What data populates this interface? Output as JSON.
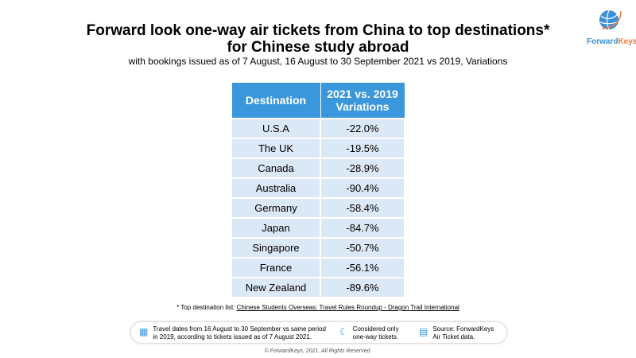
{
  "title_line1": "Forward look one-way air tickets from China to top destinations*",
  "title_line2": "for Chinese study abroad",
  "subtitle": "with bookings issued as of 7 August, 16 August to 30 September 2021 vs 2019, Variations",
  "logo": "ForwardKeys",
  "table": {
    "headers": [
      "Destination",
      "2021 vs. 2019 Variations"
    ],
    "rows": [
      [
        "U.S.A",
        "-22.0%"
      ],
      [
        "The UK",
        "-19.5%"
      ],
      [
        "Canada",
        "-28.9%"
      ],
      [
        "Australia",
        "-90.4%"
      ],
      [
        "Germany",
        "-58.4%"
      ],
      [
        "Japan",
        "-84.7%"
      ],
      [
        "Singapore",
        "-50.7%"
      ],
      [
        "France",
        "-56.1%"
      ],
      [
        "New Zealand",
        "-89.6%"
      ]
    ]
  },
  "note_prefix": "* Top destination list: ",
  "note_link": "Chinese Students Overseas: Travel Rules Roundup - Dragon Trail International",
  "info": [
    {
      "icon": "calendar-icon",
      "text1": "Travel dates from 16 August to 30 September vs same period",
      "text2": "in 2019, according to tickets issued as of 7 August 2021."
    },
    {
      "icon": "moon-icon",
      "text1": "Considered only",
      "text2": "one-way tickets."
    },
    {
      "icon": "document-search-icon",
      "text1": "Source: ForwardKeys",
      "text2": "Air Ticket data."
    }
  ],
  "copyright": "© ForwardKeys, 2021. All Rights Reserved."
}
